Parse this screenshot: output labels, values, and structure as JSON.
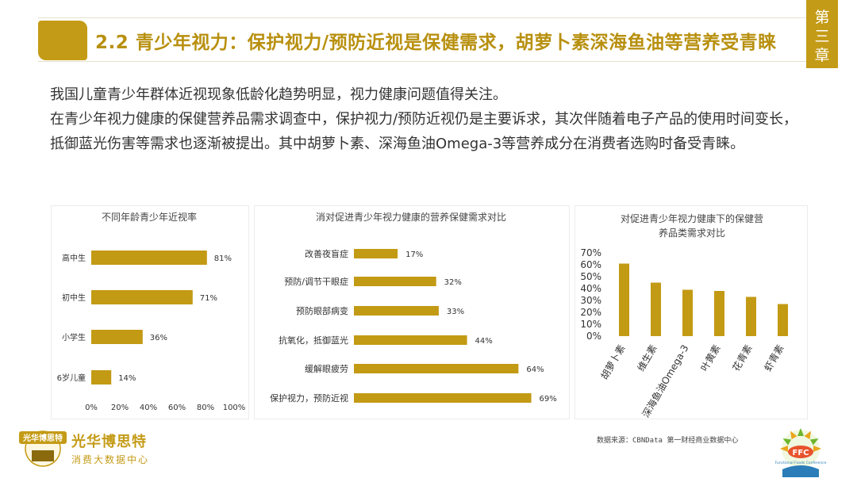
{
  "header": {
    "title": "2.2 青少年视力：保护视力/预防近视是保健需求，胡萝卜素深海鱼油等营养受青睐",
    "chapter": [
      "第",
      "三",
      "章"
    ]
  },
  "body": {
    "para1": "我国儿童青少年群体近视现象低龄化趋势明显，视力健康问题值得关注。",
    "para2": "在青少年视力健康的保健营养品需求调查中，保护视力/预防近视仍是主要诉求，其次伴随着电子产品的使用时间变长，抵御蓝光伤害等需求也逐渐被提出。其中胡萝卜素、深海鱼油Omega-3等营养成分在消费者选购时备受青睐。"
  },
  "colors": {
    "accent": "#c49b16",
    "bar": "#c39a14"
  },
  "chart_data": [
    {
      "type": "bar",
      "orientation": "horizontal",
      "title": "不同年龄青少年近视率",
      "categories": [
        "高中生",
        "初中生",
        "小学生",
        "6岁儿童"
      ],
      "values": [
        81,
        71,
        36,
        14
      ],
      "value_labels": [
        "81%",
        "71%",
        "36%",
        "14%"
      ],
      "xlim": [
        0,
        100
      ],
      "ticks": [
        "0%",
        "20%",
        "40%",
        "60%",
        "80%",
        "100%"
      ],
      "grid": false
    },
    {
      "type": "bar",
      "orientation": "horizontal",
      "title": "消对促进青少年视力健康的营养保健需求对比",
      "categories": [
        "改善夜盲症",
        "预防/调节干眼症",
        "预防眼部病变",
        "抗氧化，抵御蓝光",
        "缓解眼疲劳",
        "保护视力，预防近视"
      ],
      "values": [
        17,
        32,
        33,
        44,
        64,
        69
      ],
      "value_labels": [
        "17%",
        "32%",
        "33%",
        "44%",
        "64%",
        "69%"
      ],
      "xlim": [
        0,
        100
      ],
      "grid": false
    },
    {
      "type": "bar",
      "orientation": "vertical",
      "title": [
        "对促进青少年视力健康下的保健营",
        "养品类需求对比"
      ],
      "categories": [
        "胡萝卜素",
        "维生素",
        "深海鱼油Omega-3",
        "叶黄素",
        "花青素",
        "虾青素"
      ],
      "values": [
        61,
        45,
        39,
        38,
        33,
        27
      ],
      "ylim": [
        0,
        70
      ],
      "ticks": [
        "0%",
        "10%",
        "20%",
        "30%",
        "40%",
        "50%",
        "60%",
        "70%"
      ],
      "grid": false
    }
  ],
  "footer": {
    "brand_name": "光华博思特",
    "brand_sub": "消费大数据中心",
    "source": "数据来源：CBNData 第一财经商业数据中心",
    "logo_left_text": "光华博思特",
    "ffc_text": "FFC",
    "ffc_sub": "Functional Foods Conference"
  }
}
